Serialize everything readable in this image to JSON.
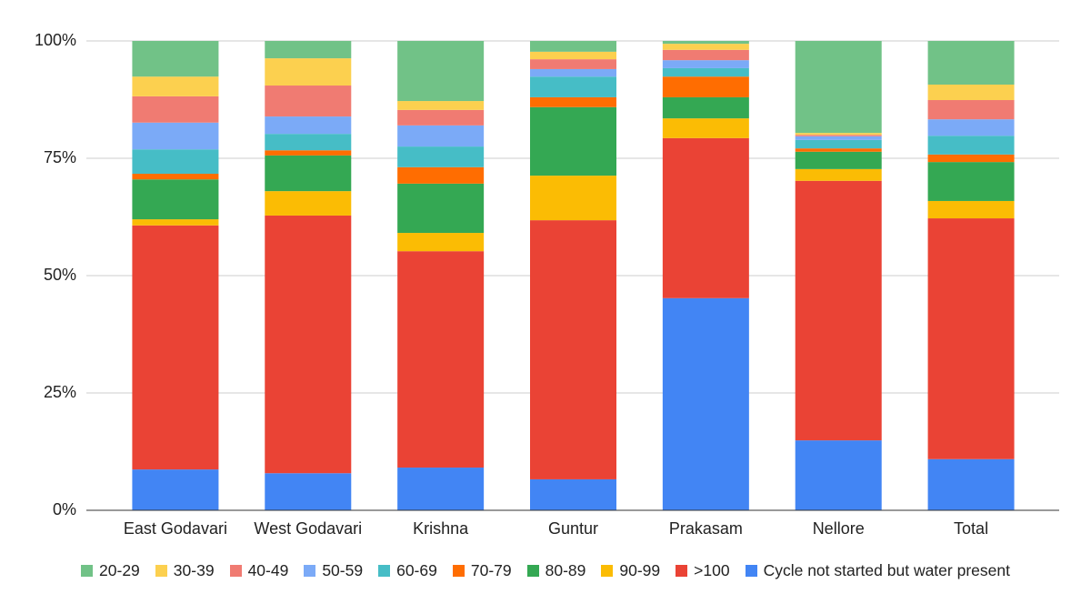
{
  "chart_data": {
    "type": "stacked_bar_percent",
    "categories": [
      "East Godavari",
      "West Godavari",
      "Krishna",
      "Guntur",
      "Prakasam",
      "Nellore",
      "Total"
    ],
    "series": [
      {
        "name": "20-29",
        "color": "#71c287",
        "values": [
          7.6,
          3.7,
          12.8,
          2.3,
          0.6,
          19.6,
          9.3
        ]
      },
      {
        "name": "30-39",
        "color": "#fcd04f",
        "values": [
          4.2,
          5.8,
          1.9,
          1.6,
          1.3,
          0.4,
          3.3
        ]
      },
      {
        "name": "40-49",
        "color": "#f07b72",
        "values": [
          5.6,
          6.6,
          3.3,
          2.1,
          2.2,
          0.3,
          4.1
        ]
      },
      {
        "name": "50-59",
        "color": "#7baaf7",
        "values": [
          5.7,
          3.7,
          4.5,
          1.6,
          1.7,
          0.8,
          3.5
        ]
      },
      {
        "name": "60-69",
        "color": "#46bdc6",
        "values": [
          5.2,
          3.5,
          4.4,
          4.4,
          1.8,
          1.8,
          4.0
        ]
      },
      {
        "name": "70-79",
        "color": "#ff6d01",
        "values": [
          1.2,
          1.1,
          3.5,
          2.1,
          4.4,
          0.7,
          1.6
        ]
      },
      {
        "name": "80-89",
        "color": "#34a853",
        "values": [
          8.5,
          7.6,
          10.5,
          14.6,
          4.5,
          3.7,
          8.3
        ]
      },
      {
        "name": "90-99",
        "color": "#fbbc04",
        "values": [
          1.3,
          5.2,
          3.9,
          9.5,
          4.2,
          2.5,
          3.7
        ]
      },
      {
        "name": ">100",
        "color": "#ea4335",
        "values": [
          52.0,
          54.9,
          46.1,
          55.2,
          34.1,
          55.3,
          51.3
        ]
      },
      {
        "name": "Cycle not started but water present",
        "color": "#4285f4",
        "values": [
          8.7,
          7.9,
          9.1,
          6.6,
          45.2,
          14.9,
          10.9
        ]
      }
    ],
    "ylim": [
      0,
      100
    ],
    "yticks": [
      {
        "value": 0,
        "label": "0%"
      },
      {
        "value": 25,
        "label": "25%"
      },
      {
        "value": 50,
        "label": "50%"
      },
      {
        "value": 75,
        "label": "75%"
      },
      {
        "value": 100,
        "label": "100%"
      }
    ],
    "grid": true,
    "legend": "bottom"
  }
}
